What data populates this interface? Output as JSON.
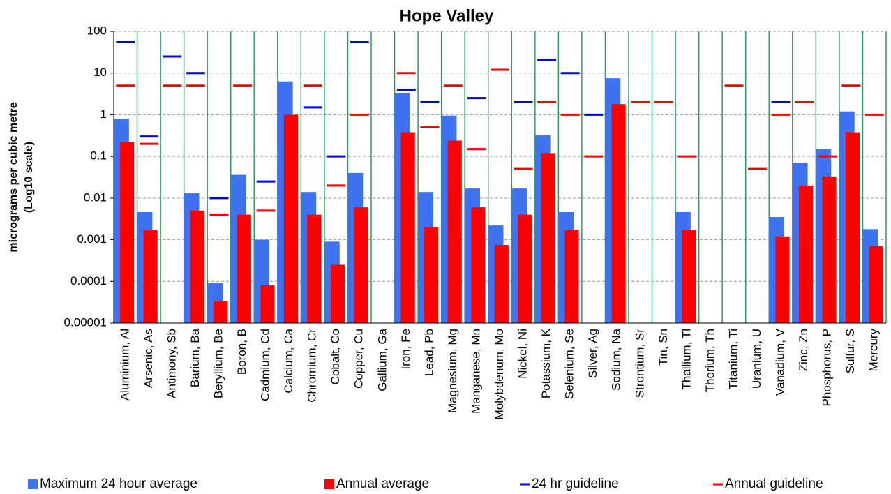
{
  "chart_data": {
    "type": "bar",
    "title": "Hope Valley",
    "ylabel": [
      "micrograms per cubic metre",
      "(Log10 scale)"
    ],
    "log_scale": true,
    "grid": true,
    "ylim": [
      1e-05,
      100
    ],
    "yticks": [
      1e-05,
      0.0001,
      0.001,
      0.01,
      0.1,
      1,
      10,
      100
    ],
    "categories": [
      "Aluminium, Al",
      "Arsenic, As",
      "Antimony, Sb",
      "Barium, Ba",
      "Beryllium, Be",
      "Boron, B",
      "Cadmium, Cd",
      "Calcium, Ca",
      "Chromium, Cr",
      "Cobalt, Co",
      "Copper, Cu",
      "Gallium, Ga",
      "Iron, Fe",
      "Lead, Pb",
      "Magnesium, Mg",
      "Manganese, Mn",
      "Molybdenum, Mo",
      "Nickel, Ni",
      "Potassium, K",
      "Selenium, Se",
      "Silver, Ag",
      "Sodium, Na",
      "Strontium, Sr",
      "Tin, Sn",
      "Thallium, Tl",
      "Thorium, Th",
      "Titanium, Ti",
      "Uranium, U",
      "Vanadium, V",
      "Zinc, Zn",
      "Phosphorus, P",
      "Sulfur, S",
      "Mercury"
    ],
    "series": [
      {
        "name": "Maximum 24 hour average",
        "color": "#3f72f0",
        "style": "bar",
        "values": [
          0.8,
          0.0046,
          null,
          0.013,
          9e-05,
          0.036,
          0.001,
          6.3,
          0.014,
          0.0009,
          0.04,
          null,
          3.3,
          0.014,
          0.95,
          0.017,
          0.0022,
          0.017,
          0.32,
          0.0046,
          null,
          7.5,
          null,
          null,
          0.0046,
          null,
          null,
          null,
          0.0035,
          0.07,
          0.15,
          1.2,
          0.0018
        ]
      },
      {
        "name": "Annual average",
        "color": "#ff0000",
        "style": "bar",
        "values": [
          0.22,
          0.0017,
          null,
          0.005,
          3.3e-05,
          0.004,
          8e-05,
          1.0,
          0.004,
          0.00025,
          0.006,
          null,
          0.38,
          0.002,
          0.24,
          0.006,
          0.00075,
          0.004,
          0.12,
          0.0017,
          null,
          1.8,
          null,
          null,
          0.0017,
          null,
          null,
          null,
          0.0012,
          0.02,
          0.033,
          0.38,
          0.0007
        ]
      },
      {
        "name": "24 hr guideline",
        "color": "#0000e0",
        "style": "dash",
        "values": [
          55,
          0.3,
          25,
          10,
          0.01,
          null,
          0.025,
          null,
          1.5,
          0.1,
          55,
          null,
          4,
          2,
          null,
          2.5,
          null,
          2,
          21,
          10,
          1,
          null,
          null,
          null,
          null,
          null,
          null,
          null,
          2,
          null,
          null,
          null,
          null
        ]
      },
      {
        "name": "Annual guideline",
        "color": "#ff0000",
        "style": "dash",
        "values": [
          5,
          0.2,
          5,
          5,
          0.004,
          5,
          0.005,
          null,
          5,
          0.02,
          1,
          null,
          10,
          0.5,
          5,
          0.15,
          12,
          0.05,
          2,
          1,
          0.1,
          null,
          2,
          2,
          0.1,
          null,
          5,
          0.05,
          1,
          2,
          0.1,
          5,
          1
        ]
      }
    ]
  }
}
